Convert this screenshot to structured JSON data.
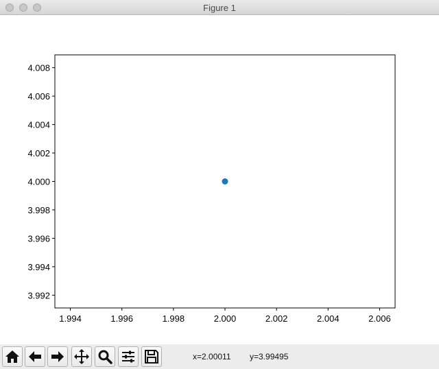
{
  "window": {
    "title": "Figure 1"
  },
  "toolbar": {
    "buttons": [
      {
        "name": "home-button",
        "icon": "home-icon"
      },
      {
        "name": "back-button",
        "icon": "arrow-left-icon"
      },
      {
        "name": "forward-button",
        "icon": "arrow-right-icon"
      },
      {
        "name": "pan-button",
        "icon": "move-icon"
      },
      {
        "name": "zoom-button",
        "icon": "magnifier-icon"
      },
      {
        "name": "configure-subplots-button",
        "icon": "sliders-icon"
      },
      {
        "name": "save-button",
        "icon": "floppy-disk-icon"
      }
    ],
    "x_readout": "x=2.00011",
    "y_readout": "y=3.99495"
  },
  "chart_data": {
    "type": "scatter",
    "x": [
      2.0
    ],
    "y": [
      4.0
    ],
    "xlim": [
      1.9934,
      2.0066
    ],
    "ylim": [
      3.9911,
      4.0089
    ],
    "xticks": [
      "1.994",
      "1.996",
      "1.998",
      "2.000",
      "2.002",
      "2.004",
      "2.006"
    ],
    "yticks": [
      "3.992",
      "3.994",
      "3.996",
      "3.998",
      "4.000",
      "4.002",
      "4.004",
      "4.006",
      "4.008"
    ],
    "grid": false,
    "marker_color": "#1f77b4"
  }
}
